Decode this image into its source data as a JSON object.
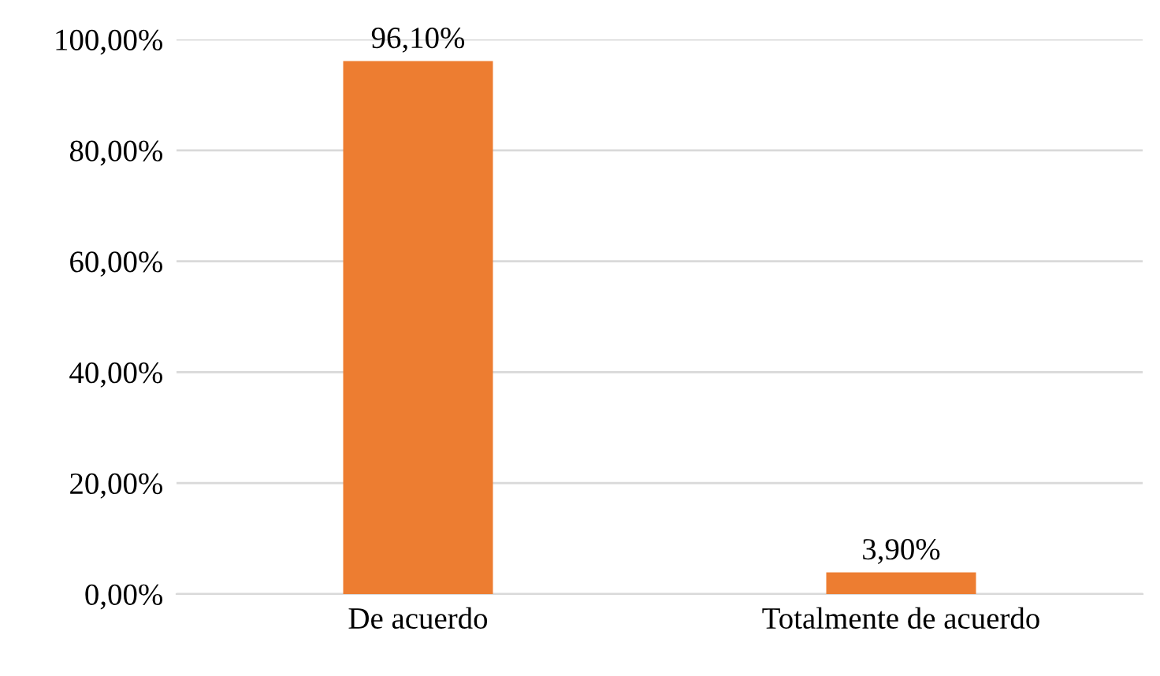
{
  "chart_data": {
    "type": "bar",
    "categories": [
      "De acuerdo",
      "Totalmente de acuerdo"
    ],
    "values": [
      96.1,
      3.9
    ],
    "color": "#ed7d31",
    "value_labels": [
      "96,10%",
      "3,90%"
    ],
    "ylim": [
      0,
      100
    ],
    "yticks": [
      {
        "value": 0,
        "label": "0,00%"
      },
      {
        "value": 20,
        "label": "20,00%"
      },
      {
        "value": 40,
        "label": "40,00%"
      },
      {
        "value": 60,
        "label": "60,00%"
      },
      {
        "value": 80,
        "label": "80,00%"
      },
      {
        "value": 100,
        "label": "100,00%"
      }
    ],
    "grid": "y"
  }
}
